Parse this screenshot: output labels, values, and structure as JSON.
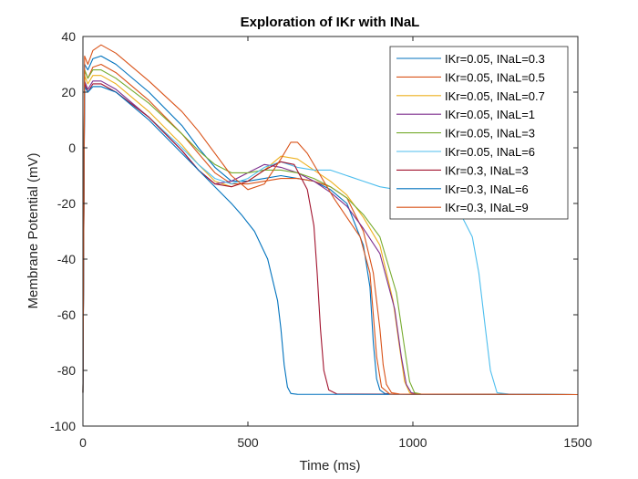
{
  "chart_data": {
    "type": "line",
    "title": "Exploration of IKr with INaL",
    "xlabel": "Time (ms)",
    "ylabel": "Membrane Potential (mV)",
    "xlim": [
      0,
      1500
    ],
    "ylim": [
      -100,
      40
    ],
    "xticks": [
      0,
      500,
      1000,
      1500
    ],
    "yticks": [
      -100,
      -80,
      -60,
      -40,
      -20,
      0,
      20,
      40
    ],
    "grid": false,
    "legend_position": "top-right",
    "series": [
      {
        "name": "IKr=0.05, INaL=0.3",
        "color": "#0072BD",
        "x": [
          0,
          5,
          15,
          30,
          55,
          100,
          200,
          300,
          350,
          400,
          450,
          500,
          550,
          600,
          650,
          700,
          750,
          800,
          850,
          870,
          880,
          890,
          900,
          915,
          935,
          1000,
          1500
        ],
        "y": [
          -88,
          30,
          28,
          32,
          33,
          30,
          20,
          8,
          0,
          -7,
          -12,
          -12,
          -11,
          -10,
          -11,
          -12,
          -15,
          -20,
          -35,
          -50,
          -70,
          -83,
          -87,
          -88.3,
          -88.5,
          -88.6,
          -88.7
        ]
      },
      {
        "name": "IKr=0.05, INaL=0.5",
        "color": "#D95319",
        "x": [
          0,
          5,
          15,
          30,
          55,
          100,
          200,
          300,
          350,
          400,
          450,
          500,
          550,
          600,
          650,
          700,
          750,
          800,
          850,
          880,
          900,
          910,
          920,
          935,
          960,
          1000,
          1500
        ],
        "y": [
          -88,
          28,
          25,
          29,
          30,
          27,
          17,
          5,
          -2,
          -9,
          -13,
          -13,
          -12,
          -11,
          -11,
          -12,
          -14,
          -18,
          -30,
          -45,
          -65,
          -78,
          -85,
          -88,
          -88.5,
          -88.6,
          -88.7
        ]
      },
      {
        "name": "IKr=0.05, INaL=0.7",
        "color": "#EDB120",
        "x": [
          0,
          5,
          15,
          30,
          55,
          100,
          200,
          300,
          350,
          400,
          450,
          500,
          550,
          600,
          650,
          700,
          750,
          800,
          850,
          900,
          940,
          960,
          975,
          990,
          1010,
          1500
        ],
        "y": [
          -88,
          26,
          23,
          26,
          26,
          23,
          13,
          1,
          -6,
          -12,
          -14,
          -12,
          -8,
          -3,
          -4,
          -8,
          -12,
          -17,
          -25,
          -35,
          -55,
          -72,
          -84,
          -88,
          -88.5,
          -88.7
        ]
      },
      {
        "name": "IKr=0.05, INaL=1",
        "color": "#7E2F8E",
        "x": [
          0,
          5,
          15,
          30,
          55,
          100,
          200,
          300,
          350,
          400,
          450,
          500,
          550,
          600,
          650,
          700,
          750,
          800,
          850,
          900,
          945,
          965,
          980,
          995,
          1015,
          1500
        ],
        "y": [
          -88,
          24,
          21,
          24,
          24,
          21,
          11,
          -1,
          -8,
          -13,
          -12,
          -9,
          -6,
          -7,
          -9,
          -12,
          -16,
          -21,
          -29,
          -38,
          -58,
          -75,
          -85,
          -88,
          -88.5,
          -88.7
        ]
      },
      {
        "name": "IKr=0.05, INaL=3",
        "color": "#77AC30",
        "x": [
          0,
          5,
          15,
          30,
          55,
          100,
          200,
          300,
          350,
          400,
          450,
          500,
          550,
          600,
          650,
          700,
          750,
          800,
          850,
          900,
          950,
          975,
          990,
          1005,
          1025,
          1500
        ],
        "y": [
          -88,
          28,
          25,
          28,
          28,
          25,
          16,
          5,
          -1,
          -6,
          -9,
          -9,
          -8,
          -8,
          -9,
          -11,
          -14,
          -18,
          -24,
          -32,
          -52,
          -72,
          -84,
          -88,
          -88.5,
          -88.7
        ]
      },
      {
        "name": "IKr=0.05, INaL=6",
        "color": "#4DBEEE",
        "x": [
          0,
          5,
          15,
          30,
          55,
          100,
          200,
          300,
          350,
          400,
          450,
          500,
          550,
          600,
          650,
          700,
          750,
          800,
          850,
          900,
          1000,
          1100,
          1150,
          1180,
          1200,
          1220,
          1235,
          1255,
          1290,
          1500
        ],
        "y": [
          -88,
          22,
          20,
          22,
          22,
          20,
          11,
          0,
          -6,
          -11,
          -13,
          -11,
          -7,
          -5,
          -7,
          -8,
          -8,
          -10,
          -12,
          -14,
          -16,
          -20,
          -25,
          -32,
          -45,
          -65,
          -80,
          -88,
          -88.5,
          -88.7
        ]
      },
      {
        "name": "IKr=0.3, INaL=3",
        "color": "#A2142F",
        "x": [
          0,
          5,
          15,
          30,
          55,
          100,
          200,
          300,
          350,
          400,
          450,
          500,
          550,
          600,
          640,
          680,
          700,
          710,
          720,
          730,
          745,
          770,
          1500
        ],
        "y": [
          -88,
          23,
          20,
          23,
          23,
          20,
          11,
          -1,
          -8,
          -13,
          -14,
          -12,
          -8,
          -5,
          -6,
          -15,
          -28,
          -45,
          -65,
          -80,
          -87,
          -88.5,
          -88.7
        ]
      },
      {
        "name": "IKr=0.3, INaL=6",
        "color": "#0072BD",
        "x": [
          0,
          5,
          15,
          30,
          55,
          100,
          200,
          300,
          350,
          400,
          450,
          480,
          520,
          560,
          590,
          600,
          610,
          620,
          630,
          650,
          1500
        ],
        "y": [
          -88,
          22,
          20,
          22,
          22,
          20,
          10,
          -2,
          -8,
          -14,
          -20,
          -24,
          -30,
          -40,
          -55,
          -65,
          -78,
          -86,
          -88.3,
          -88.6,
          -88.7
        ]
      },
      {
        "name": "IKr=0.3, INaL=9",
        "color": "#D95319",
        "x": [
          0,
          5,
          15,
          30,
          55,
          100,
          200,
          300,
          350,
          400,
          450,
          500,
          550,
          600,
          630,
          650,
          680,
          720,
          760,
          800,
          840,
          870,
          880,
          890,
          905,
          930,
          1500
        ],
        "y": [
          -88,
          33,
          30,
          35,
          37,
          34,
          24,
          13,
          6,
          -2,
          -10,
          -15,
          -13,
          -4,
          2,
          2,
          -2,
          -10,
          -18,
          -25,
          -32,
          -45,
          -60,
          -75,
          -86,
          -88.5,
          -88.7
        ]
      }
    ]
  }
}
